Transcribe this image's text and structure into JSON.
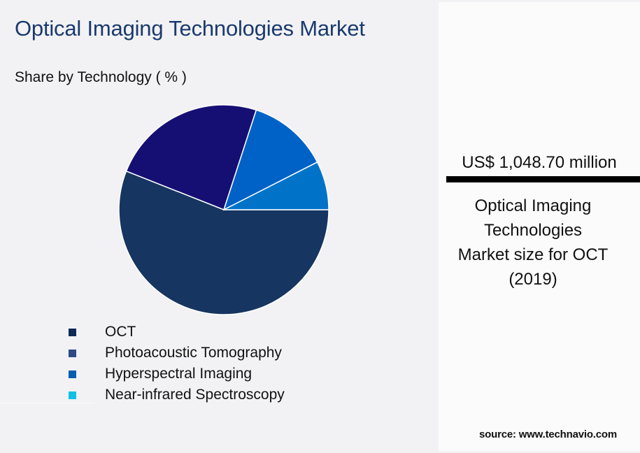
{
  "header": {
    "title": "Optical Imaging Technologies Market",
    "subtitle": "Share by Technology ( % )"
  },
  "legend": {
    "items": [
      {
        "label": "OCT",
        "color": "#0f2a55"
      },
      {
        "label": "Photoacoustic Tomography",
        "color": "#2d4a86"
      },
      {
        "label": "Hyperspectral Imaging",
        "color": "#0a5cb3"
      },
      {
        "label": "Near-infrared Spectroscopy",
        "color": "#10c0e6"
      }
    ]
  },
  "kpi": {
    "value": "US$ 1,048.70 million",
    "caption_lines": [
      "Optical Imaging",
      "Technologies",
      "Market size for OCT",
      "(2019)"
    ]
  },
  "footer": {
    "source": "source: www.technavio.com"
  },
  "chart_data": {
    "type": "pie",
    "title": "Optical Imaging Technologies Market",
    "subtitle": "Share by Technology ( % )",
    "categories": [
      "OCT",
      "Photoacoustic Tomography",
      "Hyperspectral Imaging",
      "Near-infrared Spectroscopy"
    ],
    "values": [
      56,
      24,
      12.5,
      7.5
    ],
    "colors": [
      "#163560",
      "#160f73",
      "#0062c6",
      "#0073c8"
    ],
    "start_angle_deg": 0,
    "direction": "clockwise",
    "legend_position": "bottom-left",
    "annotations": [
      "US$ 1,048.70 million — Optical Imaging Technologies Market size for OCT (2019)"
    ]
  }
}
